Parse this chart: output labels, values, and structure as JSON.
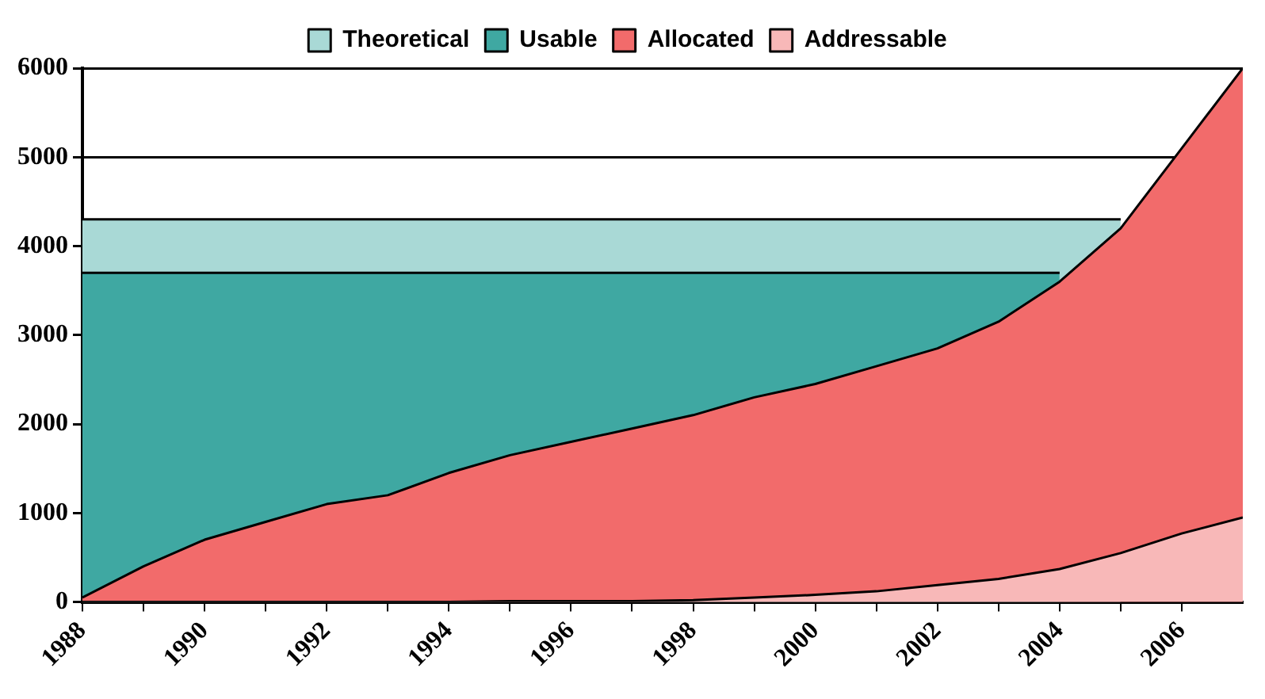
{
  "chart_data": {
    "type": "area",
    "x": [
      1988,
      1989,
      1990,
      1991,
      1992,
      1993,
      1994,
      1995,
      1996,
      1997,
      1998,
      1999,
      2000,
      2001,
      2002,
      2003,
      2004,
      2005,
      2006,
      2007
    ],
    "series": [
      {
        "name": "Theoretical",
        "color": "#a9d9d6",
        "values": [
          4300,
          4300,
          4300,
          4300,
          4300,
          4300,
          4300,
          4300,
          4300,
          4300,
          4300,
          4300,
          4300,
          4300,
          4300,
          4300,
          4300,
          4300,
          null,
          null
        ]
      },
      {
        "name": "Usable",
        "color": "#3fa8a2",
        "values": [
          3700,
          3700,
          3700,
          3700,
          3700,
          3700,
          3700,
          3700,
          3700,
          3700,
          3700,
          3700,
          3700,
          3700,
          3700,
          3700,
          3700,
          null,
          null,
          null
        ]
      },
      {
        "name": "Allocated",
        "color": "#f26b6b",
        "values": [
          50,
          400,
          700,
          900,
          1100,
          1200,
          1450,
          1650,
          1800,
          1950,
          2100,
          2300,
          2450,
          2650,
          2850,
          3150,
          3600,
          4200,
          5100,
          6000
        ]
      },
      {
        "name": "Addressable",
        "color": "#f8b8b8",
        "values": [
          0,
          0,
          0,
          0,
          0,
          0,
          0,
          10,
          10,
          10,
          20,
          50,
          80,
          120,
          190,
          260,
          370,
          550,
          770,
          950
        ]
      }
    ],
    "xlim": [
      1988,
      2007
    ],
    "xticks": [
      1988,
      {
        "value": 1989,
        "label": null
      },
      1990,
      {
        "value": 1991,
        "label": null
      },
      1992,
      {
        "value": 1993,
        "label": null
      },
      1994,
      {
        "value": 1995,
        "label": null
      },
      1996,
      {
        "value": 1997,
        "label": null
      },
      1998,
      {
        "value": 1999,
        "label": null
      },
      2000,
      {
        "value": 2001,
        "label": null
      },
      2002,
      {
        "value": 2003,
        "label": null
      },
      2004,
      {
        "value": 2005,
        "label": null
      },
      2006
    ],
    "ylim": [
      0,
      6000
    ],
    "yticks": [
      0,
      1000,
      2000,
      3000,
      4000,
      5000,
      6000
    ],
    "grid": "y",
    "legend": "top",
    "marker": "none"
  }
}
